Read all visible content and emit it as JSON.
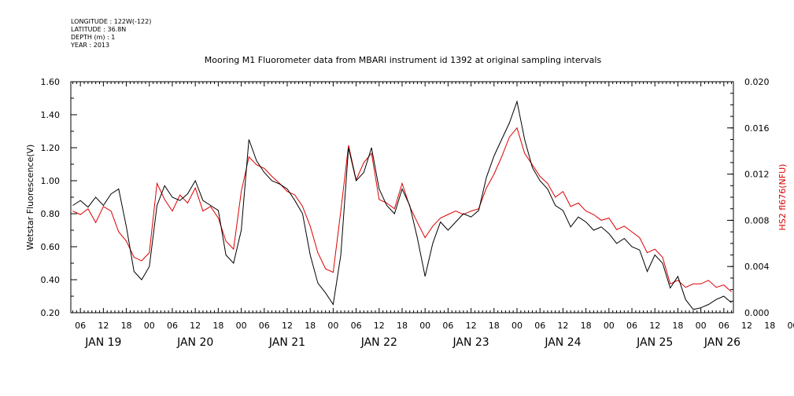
{
  "header": {
    "meta_lines": [
      "LONGITUDE : 122W(-122)",
      "LATITUDE : 36.8N",
      "DEPTH (m) : 1",
      "YEAR : 2013"
    ],
    "title": "Mooring M1 Fluorometer data from MBARI instrument id 1392 at original sampling intervals"
  },
  "chart_data": {
    "type": "line",
    "title": "Mooring M1 Fluorometer data from MBARI instrument id 1392 at original sampling intervals",
    "xlabel": "",
    "ylabel_left": "Wetstar Fluorescence(V)",
    "ylabel_right": "HS2 fl676(NFU)",
    "x_unit": "hours since Jan 19 00:00 (2013)",
    "xlim": [
      3.5,
      176.5
    ],
    "ylim_left": [
      0.2,
      1.6
    ],
    "ylim_right": [
      0.0,
      0.02
    ],
    "yticks_left": [
      "0.20",
      "0.40",
      "0.60",
      "0.80",
      "1.00",
      "1.20",
      "1.40",
      "1.60"
    ],
    "yticks_right": [
      "0.000",
      "0.004",
      "0.008",
      "0.012",
      "0.016",
      "0.020"
    ],
    "xtick_labels": [
      "06",
      "12",
      "18",
      "00",
      "06",
      "12",
      "18",
      "00",
      "06",
      "12",
      "18",
      "00",
      "06",
      "12",
      "18",
      "00",
      "06",
      "12",
      "18",
      "00",
      "06",
      "12",
      "18",
      "00",
      "06",
      "12",
      "18",
      "00",
      "06",
      "12",
      "18",
      "00"
    ],
    "day_labels": [
      "JAN 19",
      "JAN 20",
      "JAN 21",
      "JAN 22",
      "JAN 23",
      "JAN 24",
      "JAN 25",
      "JAN 26"
    ],
    "grid": false,
    "colors": {
      "series1": "#000000",
      "series2": "#dd0000",
      "axis": "#000000",
      "right_axis_title": "#dd0000"
    },
    "series": [
      {
        "name": "Wetstar Fluorescence(V)",
        "axis": "left",
        "x": [
          4,
          6,
          8,
          10,
          12,
          14,
          16,
          18,
          20,
          22,
          24,
          26,
          28,
          30,
          32,
          34,
          36,
          38,
          40,
          42,
          44,
          46,
          48,
          50,
          52,
          54,
          56,
          58,
          60,
          62,
          64,
          66,
          68,
          70,
          72,
          74,
          76,
          78,
          80,
          82,
          84,
          86,
          88,
          90,
          92,
          94,
          96,
          98,
          100,
          102,
          104,
          106,
          108,
          110,
          112,
          114,
          116,
          118,
          120,
          122,
          124,
          126,
          128,
          130,
          132,
          134,
          136,
          138,
          140,
          142,
          144,
          146,
          148,
          150,
          152,
          154,
          156,
          158,
          160,
          162,
          164,
          166,
          168,
          170,
          172,
          174,
          176
        ],
        "values": [
          0.85,
          0.88,
          0.84,
          0.9,
          0.85,
          0.92,
          0.95,
          0.72,
          0.45,
          0.4,
          0.48,
          0.85,
          0.97,
          0.9,
          0.88,
          0.92,
          1.0,
          0.88,
          0.85,
          0.82,
          0.55,
          0.5,
          0.7,
          1.25,
          1.12,
          1.05,
          1.0,
          0.98,
          0.95,
          0.88,
          0.8,
          0.55,
          0.38,
          0.32,
          0.25,
          0.55,
          1.2,
          1.0,
          1.05,
          1.2,
          0.95,
          0.85,
          0.8,
          0.95,
          0.85,
          0.65,
          0.42,
          0.62,
          0.75,
          0.7,
          0.75,
          0.8,
          0.78,
          0.82,
          1.02,
          1.15,
          1.25,
          1.35,
          1.48,
          1.25,
          1.08,
          1.0,
          0.95,
          0.85,
          0.82,
          0.72,
          0.78,
          0.75,
          0.7,
          0.72,
          0.68,
          0.62,
          0.65,
          0.6,
          0.58,
          0.45,
          0.55,
          0.5,
          0.35,
          0.42,
          0.28,
          0.22,
          0.23,
          0.25,
          0.28,
          0.3,
          0.26
        ]
      },
      {
        "name": "HS2 fl676(NFU)",
        "axis": "right",
        "x": [
          4,
          6,
          8,
          10,
          12,
          14,
          16,
          18,
          20,
          22,
          24,
          26,
          28,
          30,
          32,
          34,
          36,
          38,
          40,
          42,
          44,
          46,
          48,
          50,
          52,
          54,
          56,
          58,
          60,
          62,
          64,
          66,
          68,
          70,
          72,
          74,
          76,
          78,
          80,
          82,
          84,
          86,
          88,
          90,
          92,
          94,
          96,
          98,
          100,
          102,
          104,
          106,
          108,
          110,
          112,
          114,
          116,
          118,
          120,
          122,
          124,
          126,
          128,
          130,
          132,
          134,
          136,
          138,
          140,
          142,
          144,
          146,
          148,
          150,
          152,
          154,
          156,
          158,
          160,
          162,
          164,
          166,
          168,
          170,
          172,
          174,
          176
        ],
        "values": [
          0.0088,
          0.0085,
          0.009,
          0.0078,
          0.0092,
          0.0088,
          0.007,
          0.0062,
          0.0048,
          0.0045,
          0.0052,
          0.0112,
          0.0098,
          0.0088,
          0.0102,
          0.0095,
          0.0108,
          0.0088,
          0.0092,
          0.0082,
          0.0062,
          0.0055,
          0.0105,
          0.0135,
          0.0128,
          0.0125,
          0.0118,
          0.0112,
          0.0105,
          0.0102,
          0.0092,
          0.0075,
          0.0052,
          0.0038,
          0.0035,
          0.0088,
          0.0145,
          0.0115,
          0.013,
          0.0138,
          0.0098,
          0.0095,
          0.009,
          0.0112,
          0.0092,
          0.0078,
          0.0065,
          0.0075,
          0.0082,
          0.0085,
          0.0088,
          0.0085,
          0.0088,
          0.009,
          0.0108,
          0.012,
          0.0135,
          0.0152,
          0.016,
          0.0138,
          0.0128,
          0.0118,
          0.0112,
          0.01,
          0.0105,
          0.0092,
          0.0095,
          0.0088,
          0.0085,
          0.008,
          0.0082,
          0.0072,
          0.0075,
          0.007,
          0.0065,
          0.0052,
          0.0055,
          0.0048,
          0.0025,
          0.0028,
          0.0022,
          0.0025,
          0.0025,
          0.0028,
          0.0022,
          0.0024,
          0.0018
        ]
      }
    ]
  }
}
